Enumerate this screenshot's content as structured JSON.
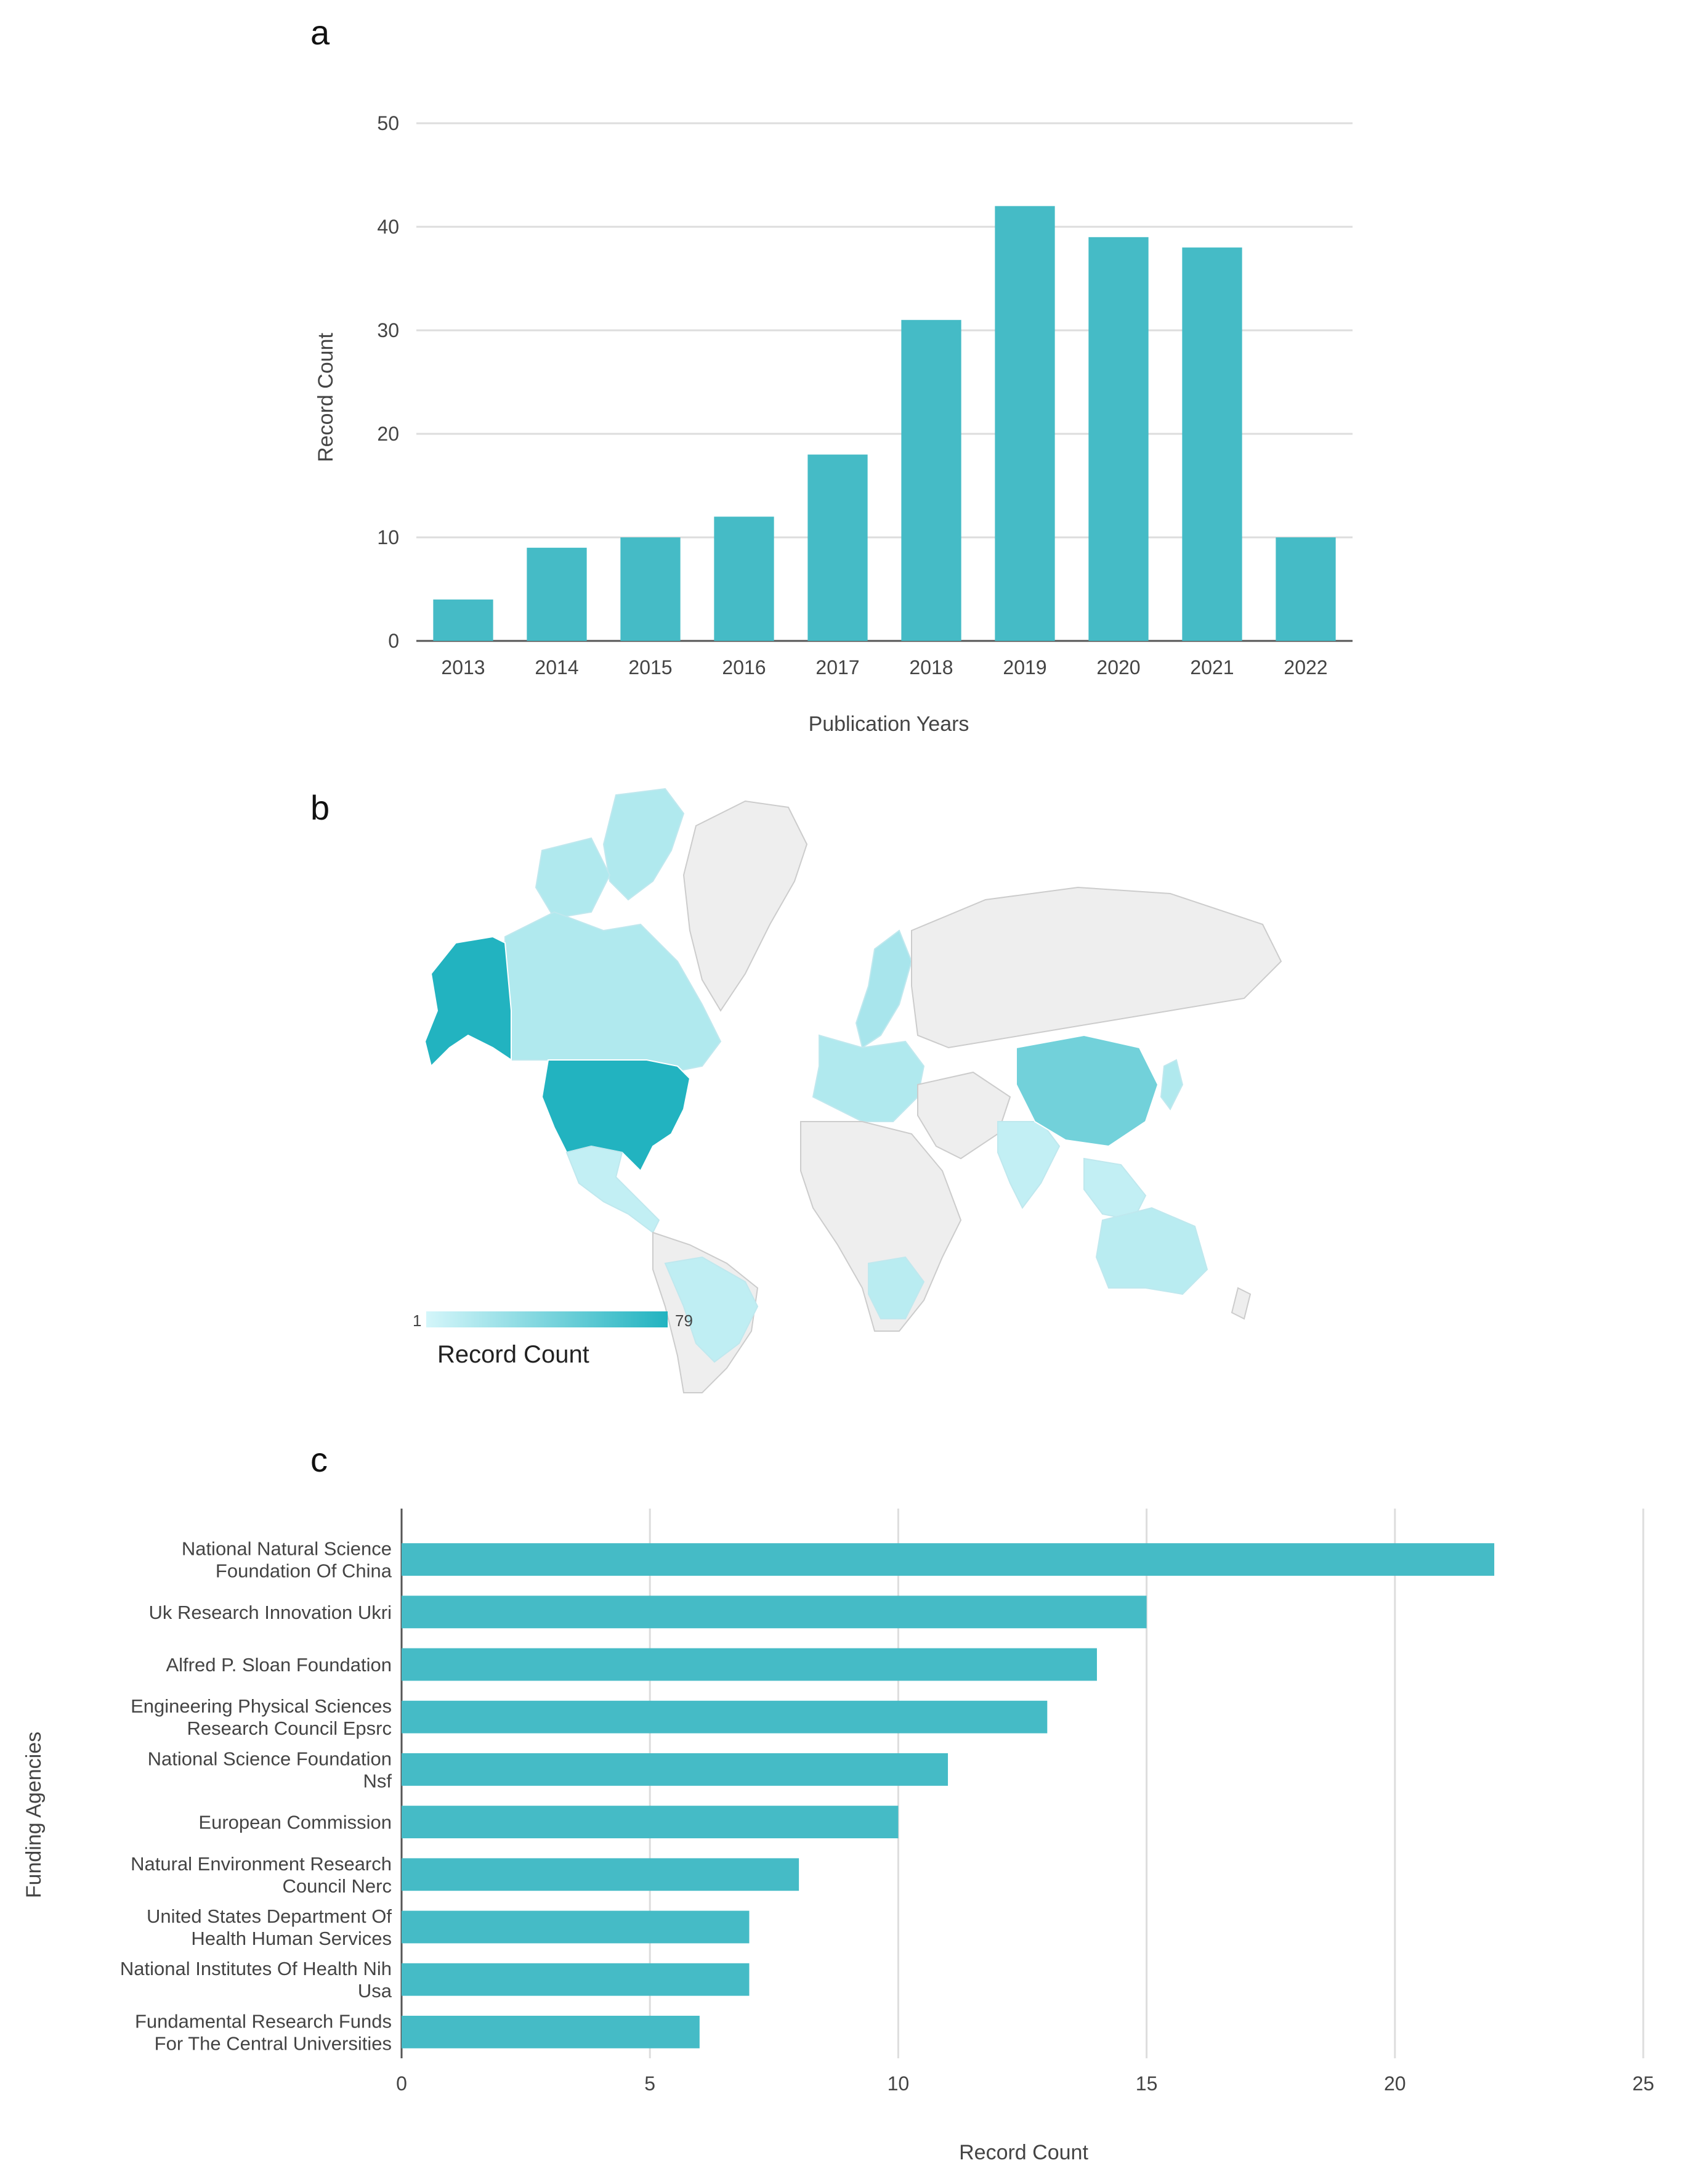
{
  "panels": {
    "a": "a",
    "b": "b",
    "c": "c"
  },
  "chart_data": [
    {
      "type": "bar",
      "categories": [
        "2013",
        "2014",
        "2015",
        "2016",
        "2017",
        "2018",
        "2019",
        "2020",
        "2021",
        "2022"
      ],
      "values": [
        4,
        9,
        10,
        12,
        18,
        31,
        42,
        39,
        38,
        10
      ],
      "xlabel": "Publication Years",
      "ylabel": "Record Count",
      "ylim": [
        0,
        50
      ],
      "yticks": [
        0,
        10,
        20,
        30,
        40,
        50
      ],
      "grid": true,
      "color": "#45bbc6"
    },
    {
      "type": "choropleth",
      "legend_title": "Record Count",
      "legend_min": "1",
      "legend_max": "79",
      "color_low": "#d4f6fa",
      "color_high": "#22b3c0",
      "no_data_color": "#eeeeee",
      "regions": [
        {
          "name": "United States",
          "level": 1.0
        },
        {
          "name": "Alaska",
          "level": 1.0
        },
        {
          "name": "China",
          "level": 0.55
        },
        {
          "name": "Canada",
          "level": 0.2
        },
        {
          "name": "Australia",
          "level": 0.15
        },
        {
          "name": "Brazil",
          "level": 0.12
        },
        {
          "name": "Europe",
          "level": 0.2
        },
        {
          "name": "India",
          "level": 0.1
        },
        {
          "name": "Scandinavia",
          "level": 0.25
        },
        {
          "name": "Arctic Canada",
          "level": 0.2
        },
        {
          "name": "Japan",
          "level": 0.2
        },
        {
          "name": "Mexico",
          "level": 0.1
        },
        {
          "name": "Southern Africa",
          "level": 0.15
        },
        {
          "name": "Southeast Asia",
          "level": 0.1
        }
      ]
    },
    {
      "type": "bar",
      "orientation": "horizontal",
      "categories": [
        [
          "National Natural Science",
          "Foundation Of China"
        ],
        [
          "Uk Research Innovation Ukri"
        ],
        [
          "Alfred P. Sloan Foundation"
        ],
        [
          "Engineering Physical Sciences",
          "Research Council Epsrc"
        ],
        [
          "National Science Foundation",
          "Nsf"
        ],
        [
          "European Commission"
        ],
        [
          "Natural Environment Research",
          "Council Nerc"
        ],
        [
          "United States Department Of",
          "Health Human Services"
        ],
        [
          "National Institutes Of Health Nih",
          "Usa"
        ],
        [
          "Fundamental Research Funds",
          "For The Central Universities"
        ]
      ],
      "values": [
        22,
        15,
        14,
        13,
        11,
        10,
        8,
        7,
        7,
        6
      ],
      "xlabel": "Record Count",
      "ylabel": "Funding Agencies",
      "xlim": [
        0,
        25
      ],
      "xticks": [
        0,
        5,
        10,
        15,
        20,
        25
      ],
      "grid": true,
      "color": "#45bbc6"
    }
  ]
}
